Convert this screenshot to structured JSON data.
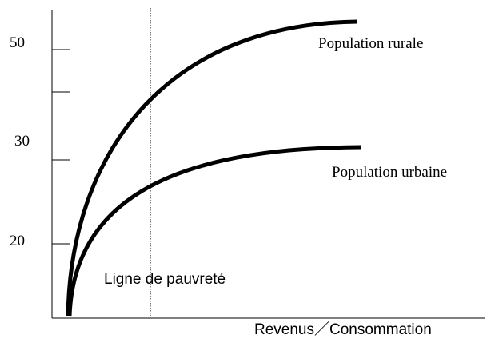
{
  "axis": {
    "y_labels": [
      "50",
      "30",
      "20"
    ],
    "x_label": "Revenus／Consommation"
  },
  "curves": [
    {
      "label": "Population rurale"
    },
    {
      "label": "Population urbaine"
    }
  ],
  "poverty_line": {
    "label": "Ligne de pauvreté"
  }
}
